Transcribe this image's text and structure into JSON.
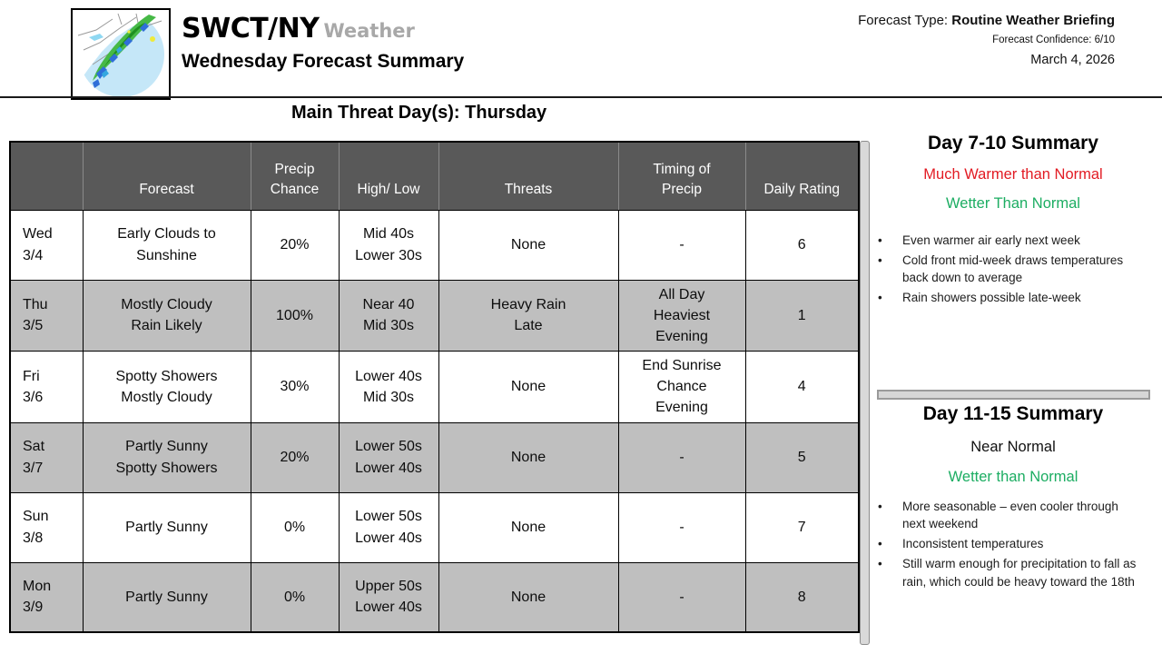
{
  "header": {
    "brand": "SWCT/NY",
    "brand_suffix": "Weather",
    "subtitle": "Wednesday Forecast Summary",
    "forecast_type_label": "Forecast Type: ",
    "forecast_type_value": "Routine Weather Briefing",
    "confidence": "Forecast Confidence: 6/10",
    "date": "March 4, 2026",
    "logo_icon": "radar-map-icon"
  },
  "main_threat_heading": "Main Threat Day(s): Thursday",
  "forecast_table": {
    "columns": [
      "",
      "Forecast",
      "Precip\nChance",
      "High/ Low",
      "Threats",
      "Timing of\nPrecip",
      "Daily Rating"
    ],
    "rows": [
      {
        "day": "Wed\n3/4",
        "forecast": "Early Clouds to\nSunshine",
        "precip_chance": "20%",
        "high_low": "Mid 40s\nLower 30s",
        "threats": "None",
        "timing": "-",
        "rating": "6"
      },
      {
        "day": "Thu\n3/5",
        "forecast": "Mostly Cloudy\nRain Likely",
        "precip_chance": "100%",
        "high_low": "Near 40\nMid 30s",
        "threats": "Heavy Rain\nLate",
        "timing": "All Day\nHeaviest\nEvening",
        "rating": "1"
      },
      {
        "day": "Fri\n3/6",
        "forecast": "Spotty Showers\nMostly Cloudy",
        "precip_chance": "30%",
        "high_low": "Lower 40s\nMid 30s",
        "threats": "None",
        "timing": "End Sunrise\nChance\nEvening",
        "rating": "4"
      },
      {
        "day": "Sat\n3/7",
        "forecast": "Partly Sunny\nSpotty Showers",
        "precip_chance": "20%",
        "high_low": "Lower 50s\nLower 40s",
        "threats": "None",
        "timing": "-",
        "rating": "5"
      },
      {
        "day": "Sun\n3/8",
        "forecast": "Partly Sunny",
        "precip_chance": "0%",
        "high_low": "Lower 50s\nLower 40s",
        "threats": "None",
        "timing": "-",
        "rating": "7"
      },
      {
        "day": "Mon\n3/9",
        "forecast": "Partly Sunny",
        "precip_chance": "0%",
        "high_low": "Upper 50s\nLower 40s",
        "threats": "None",
        "timing": "-",
        "rating": "8"
      }
    ]
  },
  "summary_7_10": {
    "title": "Day 7-10 Summary",
    "temperature_outlook": "Much Warmer than Normal",
    "precip_outlook": "Wetter Than Normal",
    "bullets": [
      "Even warmer air early next week",
      "Cold front mid-week draws temperatures back down to average",
      "Rain showers possible late-week"
    ]
  },
  "summary_11_15": {
    "title": "Day 11-15 Summary",
    "temperature_outlook": "Near Normal",
    "precip_outlook": "Wetter than Normal",
    "bullets": [
      "More seasonable – even cooler through next weekend",
      "Inconsistent temperatures",
      "Still warm enough for precipitation to fall as rain, which could be heavy toward the 18th"
    ]
  },
  "colors": {
    "table_header_gray": "#595959",
    "row_shade_gray": "#bfbfbf",
    "warm_red": "#e21b23",
    "wet_green": "#1cad62"
  }
}
